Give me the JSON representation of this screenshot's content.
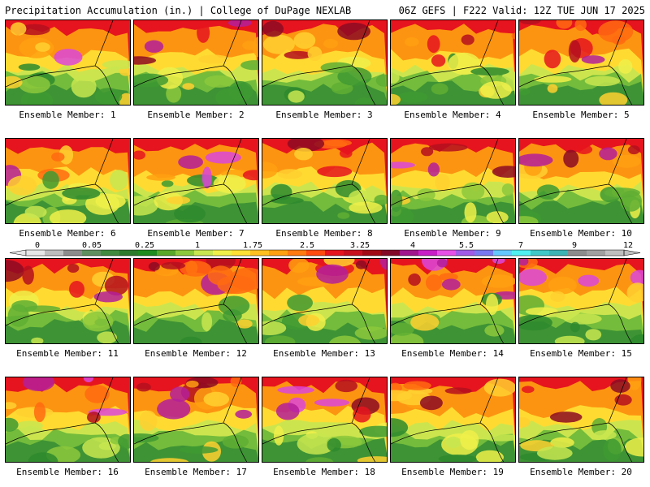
{
  "header": {
    "left": "Precipitation Accumulation (in.) | College of DuPage NEXLAB",
    "right": "06Z GEFS | F222 Valid: 12Z TUE JUN 17 2025"
  },
  "members": [
    {
      "label": "Ensemble Member: 1"
    },
    {
      "label": "Ensemble Member: 2"
    },
    {
      "label": "Ensemble Member: 3"
    },
    {
      "label": "Ensemble Member: 4"
    },
    {
      "label": "Ensemble Member: 5"
    },
    {
      "label": "Ensemble Member: 6"
    },
    {
      "label": "Ensemble Member: 7"
    },
    {
      "label": "Ensemble Member: 8"
    },
    {
      "label": "Ensemble Member: 9"
    },
    {
      "label": "Ensemble Member: 10"
    },
    {
      "label": "Ensemble Member: 11"
    },
    {
      "label": "Ensemble Member: 12"
    },
    {
      "label": "Ensemble Member: 13"
    },
    {
      "label": "Ensemble Member: 14"
    },
    {
      "label": "Ensemble Member: 15"
    },
    {
      "label": "Ensemble Member: 16"
    },
    {
      "label": "Ensemble Member: 17"
    },
    {
      "label": "Ensemble Member: 18"
    },
    {
      "label": "Ensemble Member: 19"
    },
    {
      "label": "Ensemble Member: 20"
    }
  ],
  "colorbar": {
    "tick_labels": [
      "0",
      "0.05",
      "0.25",
      "1",
      "1.75",
      "2.5",
      "3.25",
      "4",
      "5.5",
      "7",
      "9",
      "12"
    ],
    "colors": [
      "#e6e6e6",
      "#bdbdbd",
      "#8c8c8c",
      "#5f8f5f",
      "#3f8a3f",
      "#2d7a2d",
      "#1f8c1f",
      "#5aa82a",
      "#8cc83c",
      "#c8e650",
      "#f0f04a",
      "#ffe135",
      "#ffc020",
      "#ffa010",
      "#ff7a10",
      "#ff4a10",
      "#e6141e",
      "#c80f1e",
      "#a00a14",
      "#820a28",
      "#a0148c",
      "#c81ec8",
      "#e650e6",
      "#a05ae6",
      "#7878f0",
      "#64c8ff",
      "#50f0f0",
      "#40c8c8",
      "#3cb4b4",
      "#8c8c8c",
      "#a0a0a0",
      "#bebebe"
    ]
  }
}
